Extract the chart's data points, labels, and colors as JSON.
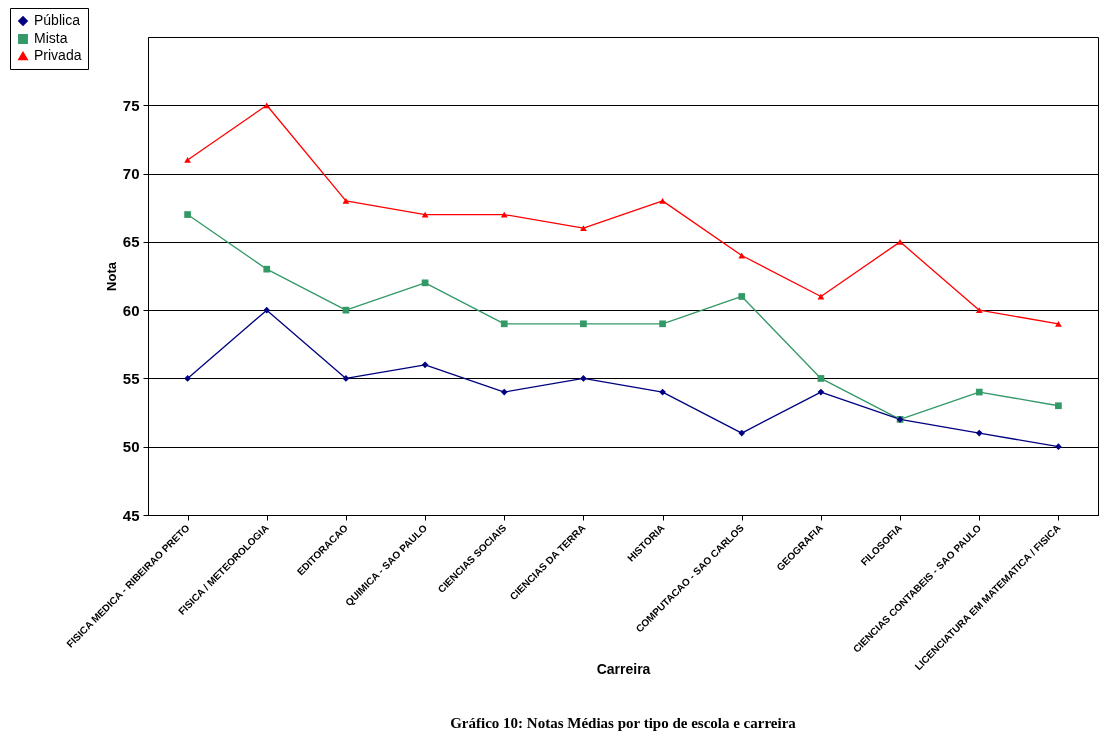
{
  "chart_data": {
    "type": "line",
    "title": "Gráfico 10: Notas Médias por tipo de escola e carreira",
    "xlabel": "Carreira",
    "ylabel": "Nota",
    "categories": [
      "FISICA MEDICA - RIBEIRAO PRETO",
      "FISICA / METEOROLOGIA",
      "EDITORACAO",
      "QUIMICA - SAO PAULO",
      "CIENCIAS SOCIAIS",
      "CIENCIAS DA TERRA",
      "HISTORIA",
      "COMPUTACAO - SAO CARLOS",
      "GEOGRAFIA",
      "FILOSOFIA",
      "CIENCIAS CONTABEIS - SAO PAULO",
      "LICENCIATURA EM MATEMATICA / FISICA"
    ],
    "series": [
      {
        "name": "Pública",
        "color": "#000080",
        "marker": "diamond",
        "values": [
          55,
          60,
          55,
          56,
          54,
          55,
          54,
          51,
          54,
          52,
          51,
          50
        ]
      },
      {
        "name": "Mista",
        "color": "#339966",
        "marker": "square",
        "values": [
          67,
          63,
          60,
          62,
          59,
          59,
          59,
          61,
          55,
          52,
          54,
          53
        ]
      },
      {
        "name": "Privada",
        "color": "#ff0000",
        "marker": "triangle",
        "values": [
          71,
          75,
          68,
          67,
          67,
          66,
          68,
          64,
          61,
          65,
          60,
          59
        ]
      }
    ],
    "ylim": [
      45,
      80
    ],
    "yticks": [
      45,
      50,
      55,
      60,
      65,
      70,
      75
    ],
    "grid": "y",
    "legend": "top left",
    "line_style": "solid"
  }
}
